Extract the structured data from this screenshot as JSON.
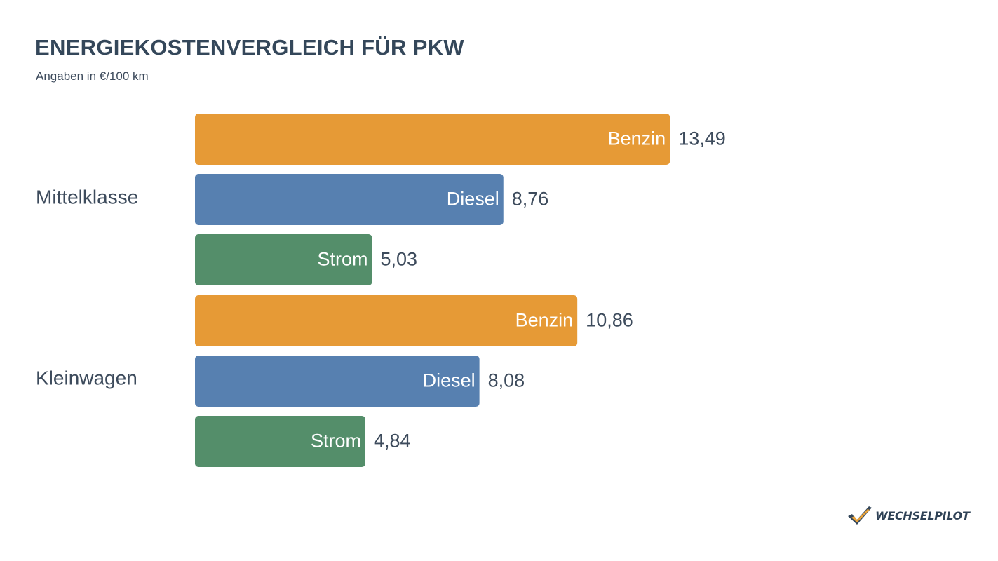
{
  "colors": {
    "Benzin": "#e69a36",
    "Diesel": "#5780b0",
    "Strom": "#548e6a",
    "text": "#3d4b5c",
    "title": "#34475a"
  },
  "chart_data": {
    "type": "bar",
    "orientation": "horizontal",
    "title": "ENERGIEKOSTENVERGLEICH FÜR PKW",
    "subtitle": "Angaben in €/100 km",
    "xlim": [
      0,
      20
    ],
    "groups": [
      {
        "name": "Mittelklasse",
        "bars": [
          {
            "label": "Benzin",
            "value": 13.49,
            "value_label": "13,49"
          },
          {
            "label": "Diesel",
            "value": 8.76,
            "value_label": "8,76"
          },
          {
            "label": "Strom",
            "value": 5.03,
            "value_label": "5,03"
          }
        ]
      },
      {
        "name": "Kleinwagen",
        "bars": [
          {
            "label": "Benzin",
            "value": 10.86,
            "value_label": "10,86"
          },
          {
            "label": "Diesel",
            "value": 8.08,
            "value_label": "8,08"
          },
          {
            "label": "Strom",
            "value": 4.84,
            "value_label": "4,84"
          }
        ]
      }
    ]
  },
  "brand": {
    "name": "WECHSELPILOT",
    "logo_icon": "checkmark-icon"
  }
}
